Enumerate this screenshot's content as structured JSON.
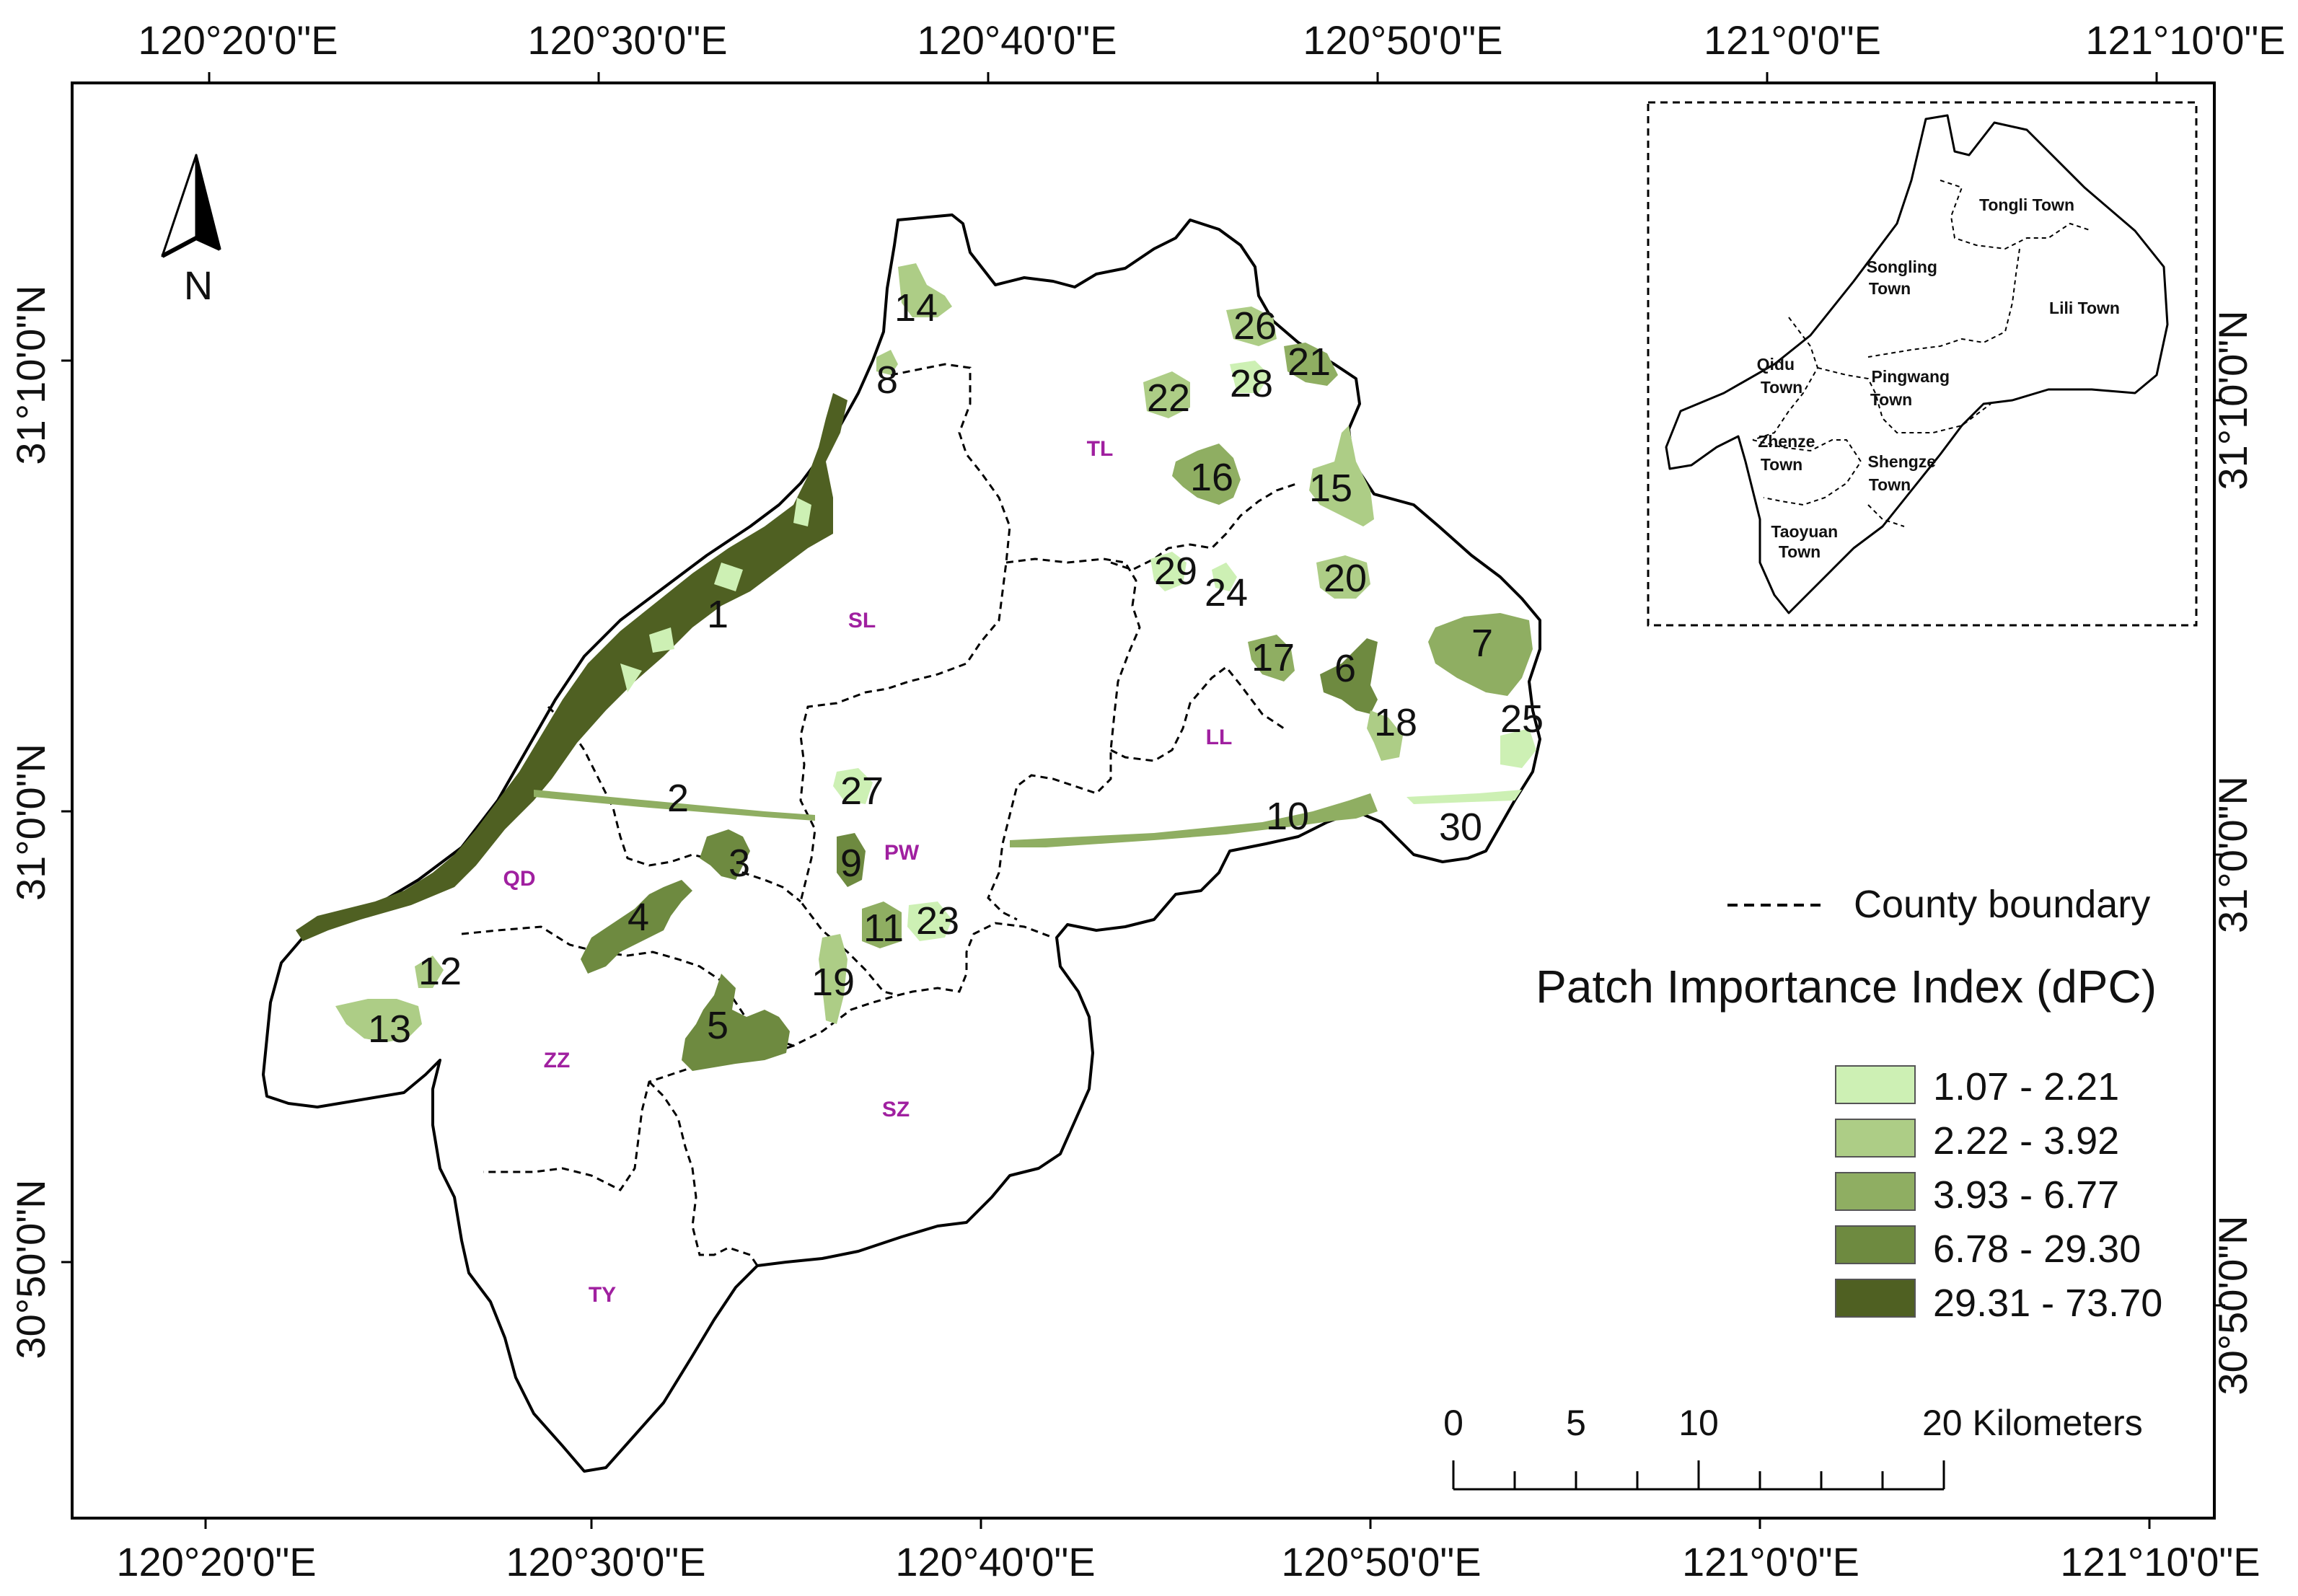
{
  "map": {
    "top_ticks": [
      "120°20'0\"E",
      "120°30'0\"E",
      "120°40'0\"E",
      "120°50'0\"E",
      "121°0'0\"E",
      "121°10'0\"E"
    ],
    "bottom_ticks": [
      "120°20'0\"E",
      "120°30'0\"E",
      "120°40'0\"E",
      "120°50'0\"E",
      "121°0'0\"E",
      "121°10'0\"E"
    ],
    "left_ticks": [
      "31°10'0\"N",
      "31°0'0\"N",
      "30°50'0\"N"
    ],
    "right_ticks": [
      "31°10'0\"N",
      "31°0'0\"N",
      "30°50'0\"N"
    ],
    "north_label": "N",
    "town_abbreviations": [
      "TL",
      "SL",
      "LL",
      "PW",
      "QD",
      "ZZ",
      "SZ",
      "TY"
    ],
    "patch_numbers": [
      "1",
      "2",
      "3",
      "4",
      "5",
      "6",
      "7",
      "8",
      "9",
      "10",
      "11",
      "12",
      "13",
      "14",
      "15",
      "16",
      "17",
      "18",
      "19",
      "20",
      "21",
      "22",
      "23",
      "24",
      "25",
      "26",
      "27",
      "28",
      "29",
      "30"
    ],
    "colors": {
      "class1": "#cdf0b4",
      "class2": "#adcd86",
      "class3": "#8fae62",
      "class4": "#6e8a40",
      "class5": "#4f6022",
      "town_abbr": "#a020a0"
    }
  },
  "inset": {
    "towns": [
      "Tongli Town",
      "Songling Town",
      "Lili Town",
      "Qidu Town",
      "Pingwang Town",
      "Zhenze Town",
      "Shengze Town",
      "Taoyuan Town"
    ]
  },
  "legend": {
    "boundary_label": "County boundary",
    "title": "Patch Importance Index (dPC)",
    "classes": [
      "1.07 - 2.21",
      "2.22 - 3.92",
      "3.93 - 6.77",
      "6.78 - 29.30",
      "29.31 - 73.70"
    ]
  },
  "scale_bar": {
    "labels": [
      "0",
      "5",
      "10",
      "20 Kilometers"
    ]
  }
}
